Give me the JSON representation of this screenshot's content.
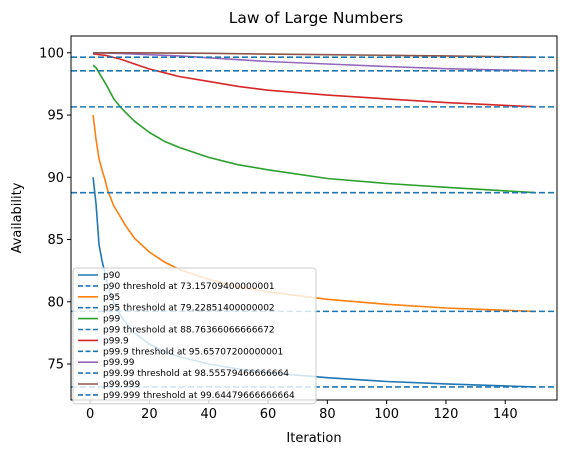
{
  "chart_data": {
    "type": "line",
    "title": "Law of Large Numbers",
    "xlabel": "Iteration",
    "ylabel": "Availability",
    "xlim": [
      -6.45,
      157.45
    ],
    "ylim": [
      72.11,
      101.35
    ],
    "xticks": [
      0,
      20,
      40,
      60,
      80,
      100,
      120,
      140
    ],
    "yticks": [
      75,
      80,
      85,
      90,
      95,
      100
    ],
    "grid": false,
    "legend_position": "lower-left",
    "series": [
      {
        "name": "p90",
        "color": "#1f77b4",
        "x": [
          1,
          2,
          3,
          4,
          5,
          6,
          8,
          10,
          12,
          15,
          20,
          25,
          30,
          40,
          50,
          60,
          80,
          100,
          120,
          150
        ],
        "values": [
          90.0,
          87.8,
          84.6,
          83.3,
          82.3,
          81.3,
          79.9,
          79.0,
          78.3,
          77.5,
          76.6,
          76.0,
          75.6,
          75.0,
          74.6,
          74.3,
          73.9,
          73.6,
          73.4,
          73.16
        ]
      },
      {
        "name": "p90 threshold at 73.15709400000001",
        "color": "#1f77b4",
        "dashed": true,
        "y": 73.157094
      },
      {
        "name": "p95",
        "color": "#ff7f0e",
        "x": [
          1,
          2,
          3,
          4,
          5,
          6,
          8,
          10,
          12,
          15,
          20,
          25,
          30,
          40,
          50,
          60,
          80,
          100,
          120,
          150
        ],
        "values": [
          95.0,
          93.0,
          91.5,
          90.6,
          89.8,
          88.9,
          87.7,
          86.9,
          86.1,
          85.1,
          84.0,
          83.2,
          82.6,
          81.8,
          81.2,
          80.8,
          80.2,
          79.8,
          79.5,
          79.23
        ]
      },
      {
        "name": "p95 threshold at 79.22851400000002",
        "color": "#ff7f0e",
        "dashed": true,
        "y": 79.228514
      },
      {
        "name": "p99",
        "color": "#2ca02c",
        "x": [
          1,
          2,
          3,
          4,
          5,
          6,
          8,
          10,
          12,
          15,
          20,
          25,
          30,
          40,
          50,
          60,
          80,
          100,
          120,
          150
        ],
        "values": [
          99.0,
          98.8,
          98.4,
          98.0,
          97.6,
          97.2,
          96.3,
          95.7,
          95.2,
          94.5,
          93.6,
          92.9,
          92.4,
          91.6,
          91.0,
          90.6,
          89.9,
          89.5,
          89.2,
          88.77
        ]
      },
      {
        "name": "p99 threshold at 88.76366066666672",
        "color": "#2ca02c",
        "dashed": true,
        "y": 88.763661
      },
      {
        "name": "p99.9",
        "color": "#d62728",
        "x": [
          1,
          2,
          3,
          4,
          5,
          6,
          8,
          10,
          12,
          15,
          20,
          25,
          30,
          40,
          50,
          60,
          80,
          100,
          120,
          150
        ],
        "values": [
          99.9,
          99.9,
          99.85,
          99.82,
          99.8,
          99.75,
          99.62,
          99.5,
          99.35,
          99.1,
          98.7,
          98.4,
          98.1,
          97.7,
          97.3,
          97.0,
          96.6,
          96.3,
          96.0,
          95.66
        ]
      },
      {
        "name": "p99.9 threshold at 95.65707200000001",
        "color": "#d62728",
        "dashed": true,
        "y": 95.657072
      },
      {
        "name": "p99.99",
        "color": "#9467bd",
        "x": [
          1,
          5,
          10,
          15,
          20,
          30,
          40,
          50,
          60,
          80,
          100,
          120,
          150
        ],
        "values": [
          99.99,
          99.98,
          99.95,
          99.9,
          99.85,
          99.75,
          99.6,
          99.45,
          99.3,
          99.1,
          98.9,
          98.72,
          98.56
        ]
      },
      {
        "name": "p99.99 threshold at 98.55579466666664",
        "color": "#9467bd",
        "dashed": true,
        "y": 98.555795
      },
      {
        "name": "p99.999",
        "color": "#8c564b",
        "x": [
          1,
          20,
          40,
          60,
          80,
          100,
          120,
          150
        ],
        "values": [
          99.999,
          99.99,
          99.96,
          99.9,
          99.85,
          99.8,
          99.75,
          99.65
        ]
      },
      {
        "name": "p99.999 threshold at 99.64479666666664",
        "color": "#8c564b",
        "dashed": true,
        "y": 99.644797
      }
    ]
  },
  "threshold_line_color": "#1f77b4"
}
